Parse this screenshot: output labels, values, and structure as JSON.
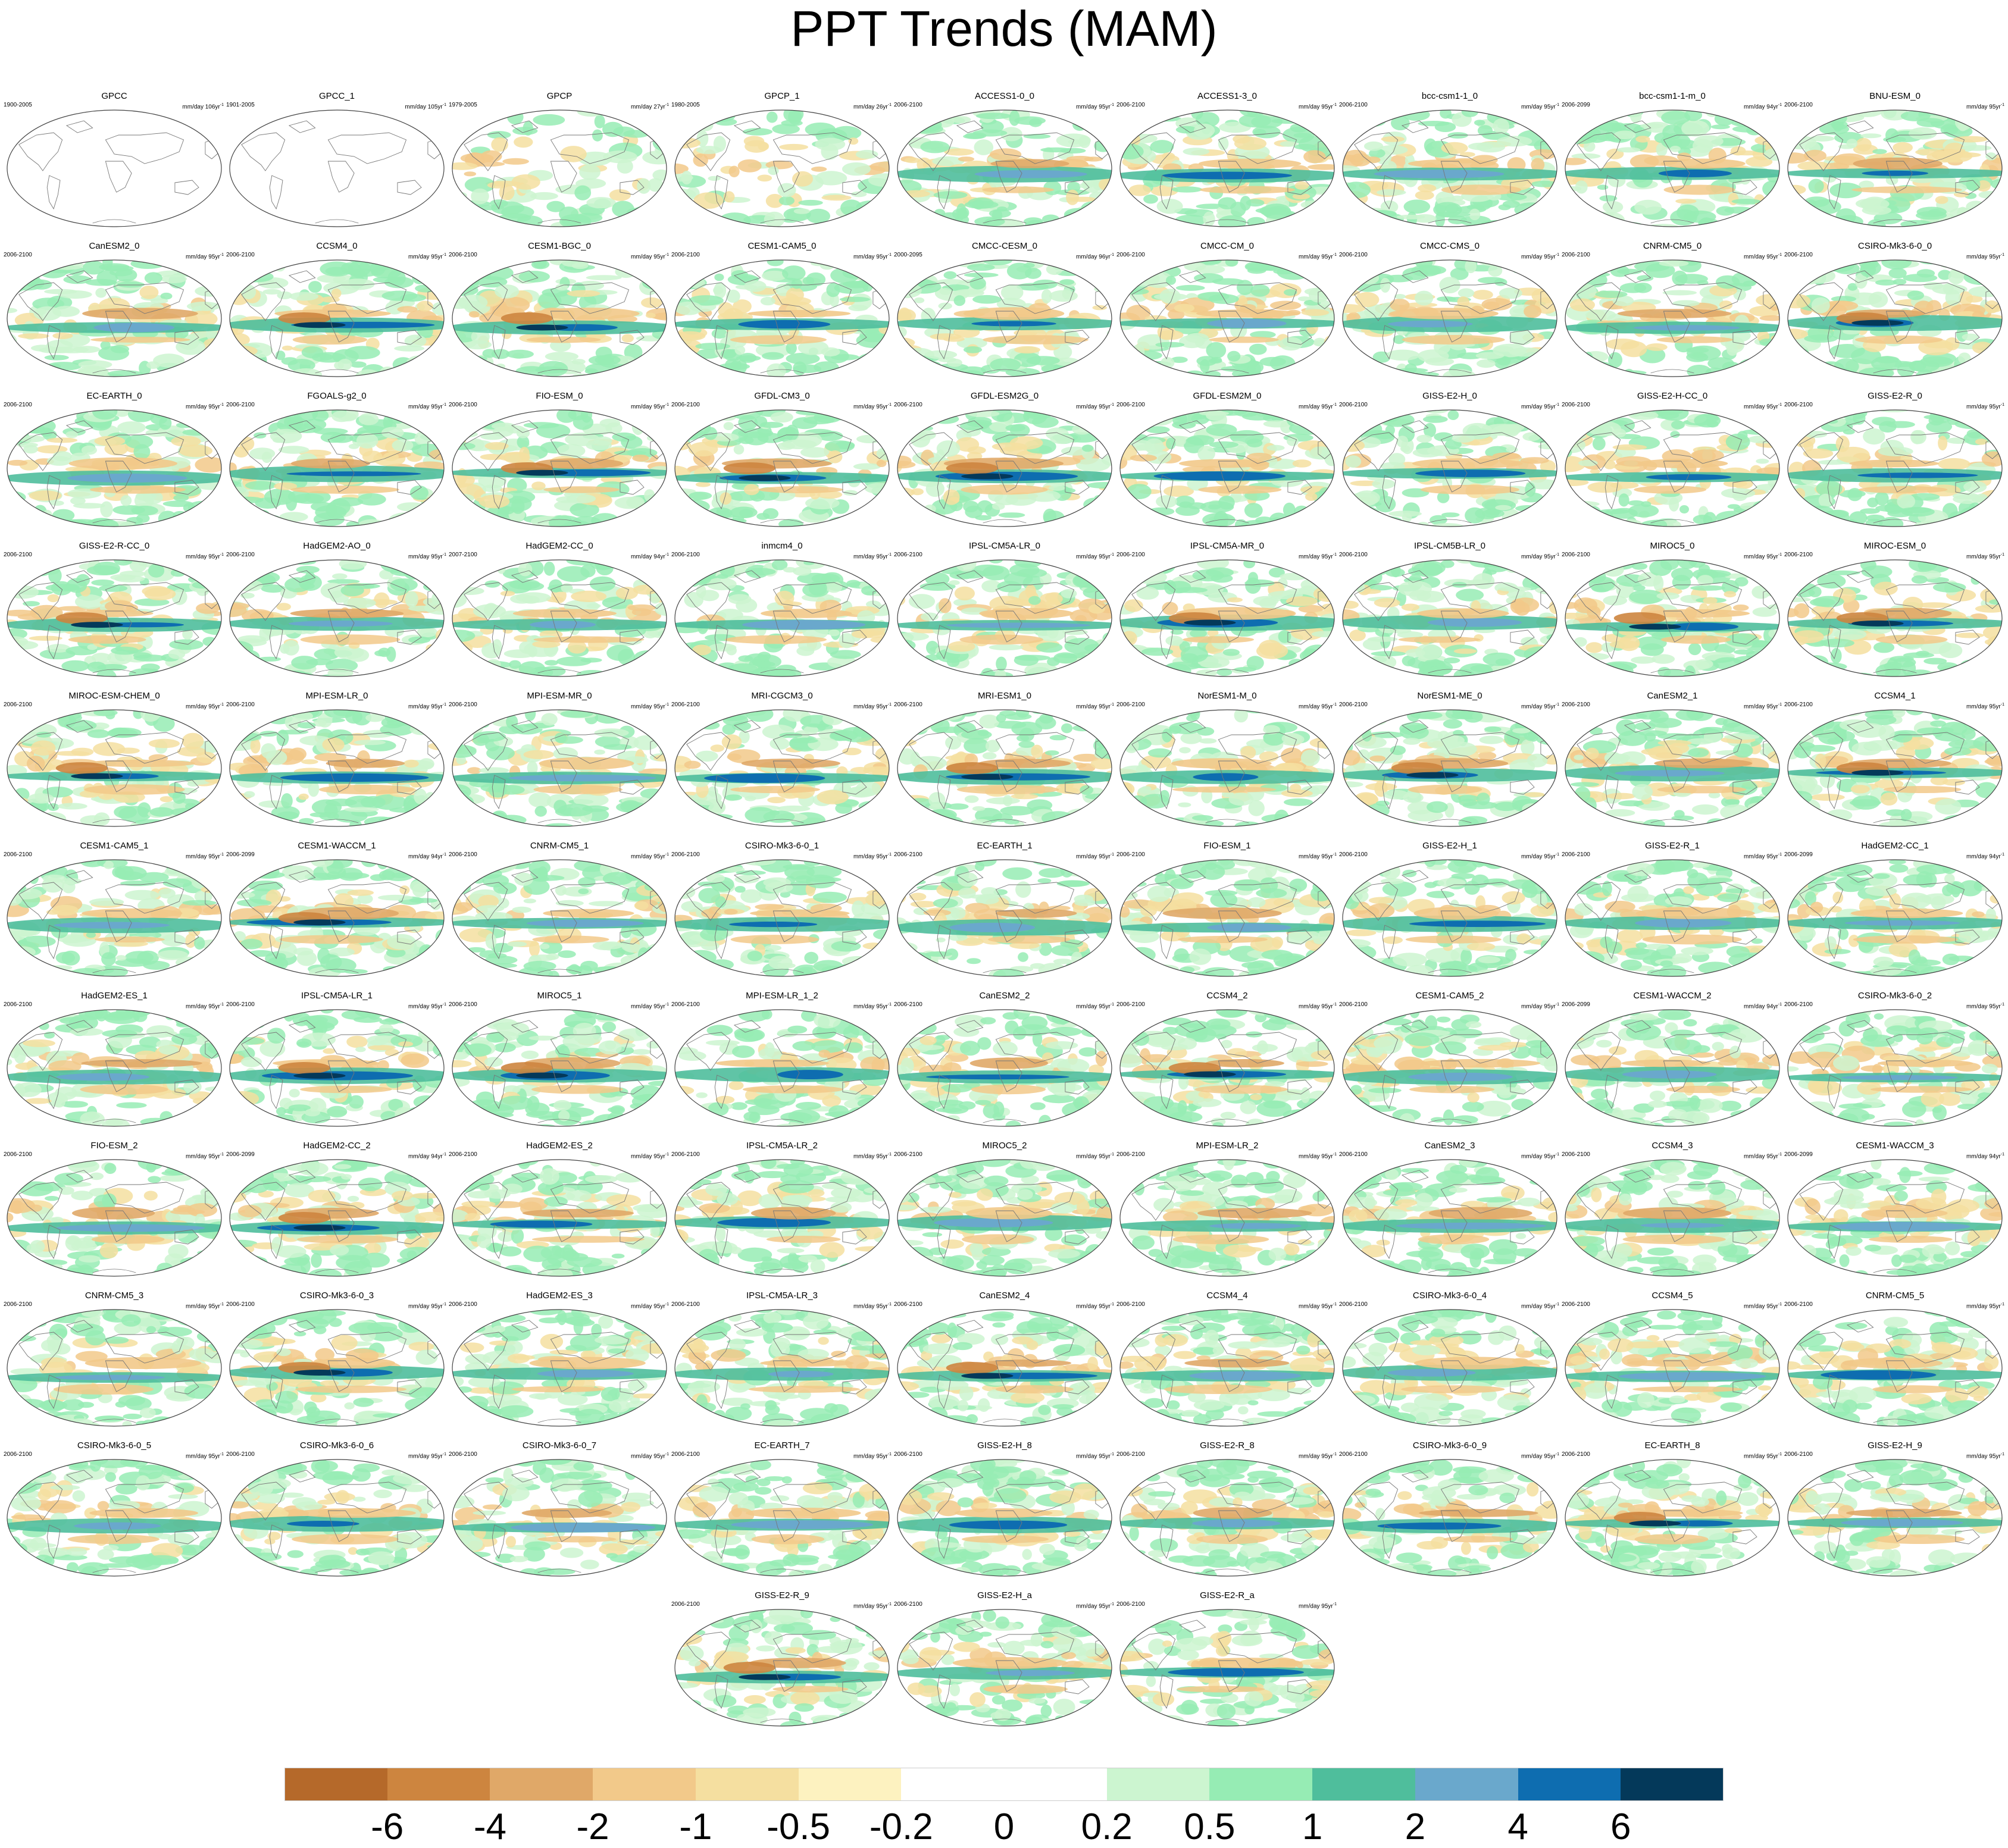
{
  "title": "PPT Trends (MAM)",
  "units_exponent": "-1",
  "icons": {
    "globe": "globe-map-icon"
  },
  "chart_data": {
    "type": "heatmap",
    "title": "PPT Trends (MAM)",
    "variable": "precipitation trend",
    "panels": [
      {
        "name": "GPCC",
        "period": "1900-2005",
        "units": "mm/day 106yr",
        "obs": true
      },
      {
        "name": "GPCC_1",
        "period": "1901-2005",
        "units": "mm/day 105yr",
        "obs": true
      },
      {
        "name": "GPCP",
        "period": "1979-2005",
        "units": "mm/day 27yr",
        "obs": true
      },
      {
        "name": "GPCP_1",
        "period": "1980-2005",
        "units": "mm/day 26yr",
        "obs": true
      },
      {
        "name": "ACCESS1-0_0",
        "period": "2006-2100",
        "units": "mm/day 95yr"
      },
      {
        "name": "ACCESS1-3_0",
        "period": "2006-2100",
        "units": "mm/day 95yr"
      },
      {
        "name": "bcc-csm1-1_0",
        "period": "2006-2100",
        "units": "mm/day 95yr"
      },
      {
        "name": "bcc-csm1-1-m_0",
        "period": "2006-2099",
        "units": "mm/day 94yr"
      },
      {
        "name": "BNU-ESM_0",
        "period": "2006-2100",
        "units": "mm/day 95yr"
      },
      {
        "name": "CanESM2_0",
        "period": "2006-2100",
        "units": "mm/day 95yr"
      },
      {
        "name": "CCSM4_0",
        "period": "2006-2100",
        "units": "mm/day 95yr"
      },
      {
        "name": "CESM1-BGC_0",
        "period": "2006-2100",
        "units": "mm/day 95yr"
      },
      {
        "name": "CESM1-CAM5_0",
        "period": "2006-2100",
        "units": "mm/day 95yr"
      },
      {
        "name": "CMCC-CESM_0",
        "period": "2000-2095",
        "units": "mm/day 96yr"
      },
      {
        "name": "CMCC-CM_0",
        "period": "2006-2100",
        "units": "mm/day 95yr"
      },
      {
        "name": "CMCC-CMS_0",
        "period": "2006-2100",
        "units": "mm/day 95yr"
      },
      {
        "name": "CNRM-CM5_0",
        "period": "2006-2100",
        "units": "mm/day 95yr"
      },
      {
        "name": "CSIRO-Mk3-6-0_0",
        "period": "2006-2100",
        "units": "mm/day 95yr"
      },
      {
        "name": "EC-EARTH_0",
        "period": "2006-2100",
        "units": "mm/day 95yr"
      },
      {
        "name": "FGOALS-g2_0",
        "period": "2006-2100",
        "units": "mm/day 95yr"
      },
      {
        "name": "FIO-ESM_0",
        "period": "2006-2100",
        "units": "mm/day 95yr"
      },
      {
        "name": "GFDL-CM3_0",
        "period": "2006-2100",
        "units": "mm/day 95yr"
      },
      {
        "name": "GFDL-ESM2G_0",
        "period": "2006-2100",
        "units": "mm/day 95yr"
      },
      {
        "name": "GFDL-ESM2M_0",
        "period": "2006-2100",
        "units": "mm/day 95yr"
      },
      {
        "name": "GISS-E2-H_0",
        "period": "2006-2100",
        "units": "mm/day 95yr"
      },
      {
        "name": "GISS-E2-H-CC_0",
        "period": "2006-2100",
        "units": "mm/day 95yr"
      },
      {
        "name": "GISS-E2-R_0",
        "period": "2006-2100",
        "units": "mm/day 95yr"
      },
      {
        "name": "GISS-E2-R-CC_0",
        "period": "2006-2100",
        "units": "mm/day 95yr"
      },
      {
        "name": "HadGEM2-AO_0",
        "period": "2006-2100",
        "units": "mm/day 95yr"
      },
      {
        "name": "HadGEM2-CC_0",
        "period": "2007-2100",
        "units": "mm/day 94yr"
      },
      {
        "name": "inmcm4_0",
        "period": "2006-2100",
        "units": "mm/day 95yr"
      },
      {
        "name": "IPSL-CM5A-LR_0",
        "period": "2006-2100",
        "units": "mm/day 95yr"
      },
      {
        "name": "IPSL-CM5A-MR_0",
        "period": "2006-2100",
        "units": "mm/day 95yr"
      },
      {
        "name": "IPSL-CM5B-LR_0",
        "period": "2006-2100",
        "units": "mm/day 95yr"
      },
      {
        "name": "MIROC5_0",
        "period": "2006-2100",
        "units": "mm/day 95yr"
      },
      {
        "name": "MIROC-ESM_0",
        "period": "2006-2100",
        "units": "mm/day 95yr"
      },
      {
        "name": "MIROC-ESM-CHEM_0",
        "period": "2006-2100",
        "units": "mm/day 95yr"
      },
      {
        "name": "MPI-ESM-LR_0",
        "period": "2006-2100",
        "units": "mm/day 95yr"
      },
      {
        "name": "MPI-ESM-MR_0",
        "period": "2006-2100",
        "units": "mm/day 95yr"
      },
      {
        "name": "MRI-CGCM3_0",
        "period": "2006-2100",
        "units": "mm/day 95yr"
      },
      {
        "name": "MRI-ESM1_0",
        "period": "2006-2100",
        "units": "mm/day 95yr"
      },
      {
        "name": "NorESM1-M_0",
        "period": "2006-2100",
        "units": "mm/day 95yr"
      },
      {
        "name": "NorESM1-ME_0",
        "period": "2006-2100",
        "units": "mm/day 95yr"
      },
      {
        "name": "CanESM2_1",
        "period": "2006-2100",
        "units": "mm/day 95yr"
      },
      {
        "name": "CCSM4_1",
        "period": "2006-2100",
        "units": "mm/day 95yr"
      },
      {
        "name": "CESM1-CAM5_1",
        "period": "2006-2100",
        "units": "mm/day 95yr"
      },
      {
        "name": "CESM1-WACCM_1",
        "period": "2006-2099",
        "units": "mm/day 94yr"
      },
      {
        "name": "CNRM-CM5_1",
        "period": "2006-2100",
        "units": "mm/day 95yr"
      },
      {
        "name": "CSIRO-Mk3-6-0_1",
        "period": "2006-2100",
        "units": "mm/day 95yr"
      },
      {
        "name": "EC-EARTH_1",
        "period": "2006-2100",
        "units": "mm/day 95yr"
      },
      {
        "name": "FIO-ESM_1",
        "period": "2006-2100",
        "units": "mm/day 95yr"
      },
      {
        "name": "GISS-E2-H_1",
        "period": "2006-2100",
        "units": "mm/day 95yr"
      },
      {
        "name": "GISS-E2-R_1",
        "period": "2006-2100",
        "units": "mm/day 95yr"
      },
      {
        "name": "HadGEM2-CC_1",
        "period": "2006-2099",
        "units": "mm/day 94yr"
      },
      {
        "name": "HadGEM2-ES_1",
        "period": "2006-2100",
        "units": "mm/day 95yr"
      },
      {
        "name": "IPSL-CM5A-LR_1",
        "period": "2006-2100",
        "units": "mm/day 95yr"
      },
      {
        "name": "MIROC5_1",
        "period": "2006-2100",
        "units": "mm/day 95yr"
      },
      {
        "name": "MPI-ESM-LR_1_2",
        "period": "2006-2100",
        "units": "mm/day 95yr"
      },
      {
        "name": "CanESM2_2",
        "period": "2006-2100",
        "units": "mm/day 95yr"
      },
      {
        "name": "CCSM4_2",
        "period": "2006-2100",
        "units": "mm/day 95yr"
      },
      {
        "name": "CESM1-CAM5_2",
        "period": "2006-2100",
        "units": "mm/day 95yr"
      },
      {
        "name": "CESM1-WACCM_2",
        "period": "2006-2099",
        "units": "mm/day 94yr"
      },
      {
        "name": "CSIRO-Mk3-6-0_2",
        "period": "2006-2100",
        "units": "mm/day 95yr"
      },
      {
        "name": "FIO-ESM_2",
        "period": "2006-2100",
        "units": "mm/day 95yr"
      },
      {
        "name": "HadGEM2-CC_2",
        "period": "2006-2099",
        "units": "mm/day 94yr"
      },
      {
        "name": "HadGEM2-ES_2",
        "period": "2006-2100",
        "units": "mm/day 95yr"
      },
      {
        "name": "IPSL-CM5A-LR_2",
        "period": "2006-2100",
        "units": "mm/day 95yr"
      },
      {
        "name": "MIROC5_2",
        "period": "2006-2100",
        "units": "mm/day 95yr"
      },
      {
        "name": "MPI-ESM-LR_2",
        "period": "2006-2100",
        "units": "mm/day 95yr"
      },
      {
        "name": "CanESM2_3",
        "period": "2006-2100",
        "units": "mm/day 95yr"
      },
      {
        "name": "CCSM4_3",
        "period": "2006-2100",
        "units": "mm/day 95yr"
      },
      {
        "name": "CESM1-WACCM_3",
        "period": "2006-2099",
        "units": "mm/day 94yr"
      },
      {
        "name": "CNRM-CM5_3",
        "period": "2006-2100",
        "units": "mm/day 95yr"
      },
      {
        "name": "CSIRO-Mk3-6-0_3",
        "period": "2006-2100",
        "units": "mm/day 95yr"
      },
      {
        "name": "HadGEM2-ES_3",
        "period": "2006-2100",
        "units": "mm/day 95yr"
      },
      {
        "name": "IPSL-CM5A-LR_3",
        "period": "2006-2100",
        "units": "mm/day 95yr"
      },
      {
        "name": "CanESM2_4",
        "period": "2006-2100",
        "units": "mm/day 95yr"
      },
      {
        "name": "CCSM4_4",
        "period": "2006-2100",
        "units": "mm/day 95yr"
      },
      {
        "name": "CSIRO-Mk3-6-0_4",
        "period": "2006-2100",
        "units": "mm/day 95yr"
      },
      {
        "name": "CCSM4_5",
        "period": "2006-2100",
        "units": "mm/day 95yr"
      },
      {
        "name": "CNRM-CM5_5",
        "period": "2006-2100",
        "units": "mm/day 95yr"
      },
      {
        "name": "CSIRO-Mk3-6-0_5",
        "period": "2006-2100",
        "units": "mm/day 95yr"
      },
      {
        "name": "CSIRO-Mk3-6-0_6",
        "period": "2006-2100",
        "units": "mm/day 95yr"
      },
      {
        "name": "CSIRO-Mk3-6-0_7",
        "period": "2006-2100",
        "units": "mm/day 95yr"
      },
      {
        "name": "EC-EARTH_7",
        "period": "2006-2100",
        "units": "mm/day 95yr"
      },
      {
        "name": "GISS-E2-H_8",
        "period": "2006-2100",
        "units": "mm/day 95yr"
      },
      {
        "name": "GISS-E2-R_8",
        "period": "2006-2100",
        "units": "mm/day 95yr"
      },
      {
        "name": "CSIRO-Mk3-6-0_9",
        "period": "2006-2100",
        "units": "mm/day 95yr"
      },
      {
        "name": "EC-EARTH_8",
        "period": "2006-2100",
        "units": "mm/day 95yr"
      },
      {
        "name": "GISS-E2-H_9",
        "period": "2006-2100",
        "units": "mm/day 95yr"
      },
      {
        "name": "GISS-E2-R_9",
        "period": "2006-2100",
        "units": "mm/day 95yr"
      },
      {
        "name": "GISS-E2-H_a",
        "period": "2006-2100",
        "units": "mm/day 95yr"
      },
      {
        "name": "GISS-E2-R_a",
        "period": "2006-2100",
        "units": "mm/day 95yr"
      }
    ],
    "colorbar": {
      "labels": [
        "-6",
        "-4",
        "-2",
        "-1",
        "-0.5",
        "-0.2",
        "0",
        "0.2",
        "0.5",
        "1",
        "2",
        "4",
        "6"
      ],
      "colors": [
        "#b5692a",
        "#cd853f",
        "#e0a868",
        "#f2c98a",
        "#f5dfa0",
        "#fdf2c0",
        "#ffffff",
        "#ffffff",
        "#ccf5d0",
        "#96ecb4",
        "#4fbe9c",
        "#6aa8cc",
        "#0e6db0",
        "#04395a"
      ]
    }
  }
}
